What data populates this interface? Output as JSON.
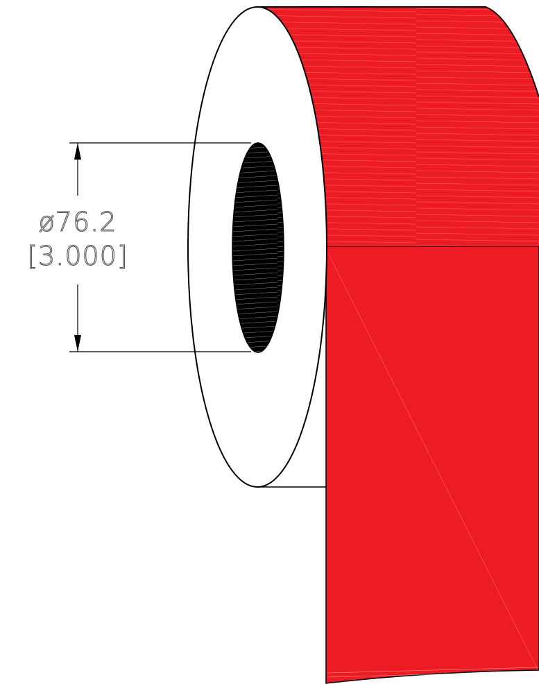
{
  "diagram": {
    "dimension": {
      "metric": "ø76.2",
      "imperial": "[3.000]"
    },
    "colors": {
      "label_material": "#ED1C24",
      "core_hole": "#000000",
      "outline": "#000000",
      "dimension_text": "#555555"
    }
  }
}
